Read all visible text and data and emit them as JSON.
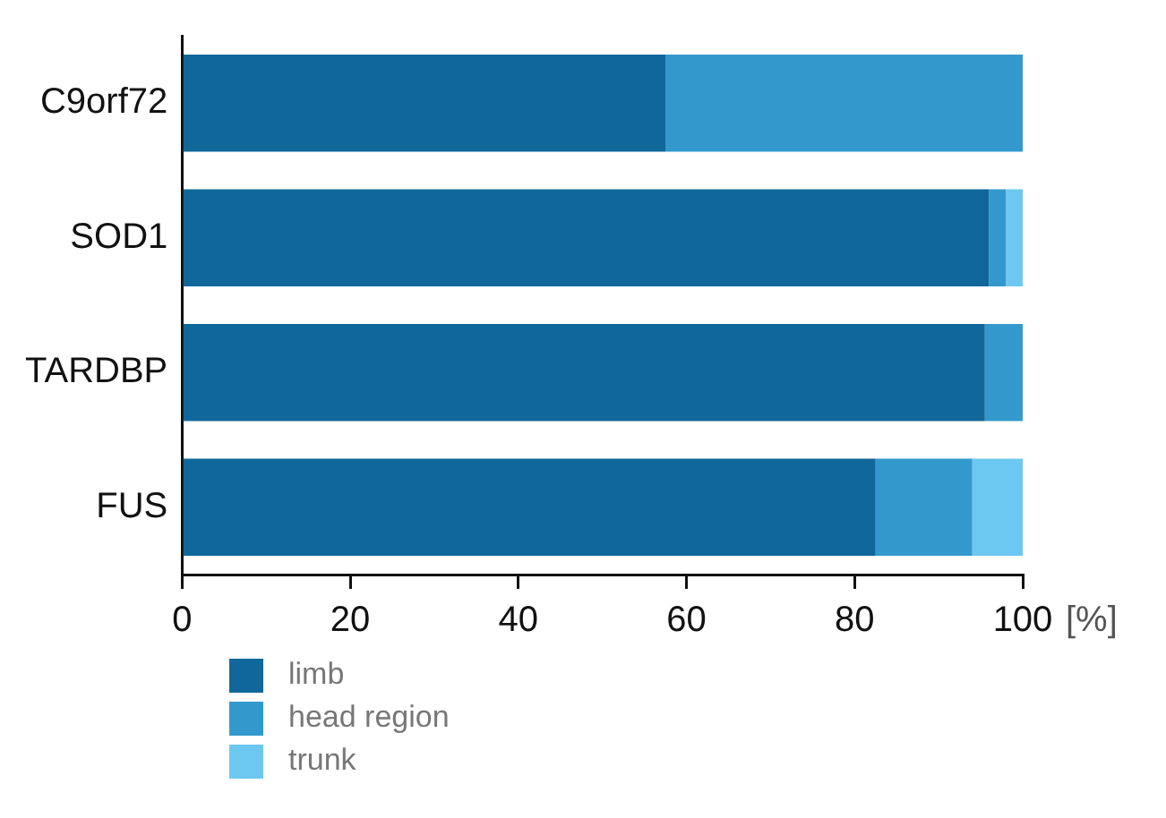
{
  "chart_data": {
    "type": "bar",
    "orientation": "horizontal",
    "stacked": true,
    "xlabel": "[%]",
    "categories": [
      "C9orf72",
      "SOD1",
      "TARDBP",
      "FUS"
    ],
    "series": [
      {
        "name": "limb",
        "color": "#10689a",
        "values": [
          57.5,
          96,
          95.5,
          82.5
        ]
      },
      {
        "name": "head region",
        "color": "#3399cc",
        "values": [
          42.5,
          2,
          4.5,
          11.5
        ]
      },
      {
        "name": "trunk",
        "color": "#6cc8f0",
        "values": [
          0,
          2,
          0,
          6
        ]
      }
    ],
    "xlim": [
      0,
      100
    ],
    "xticks": [
      0,
      20,
      40,
      60,
      80,
      100
    ],
    "grid": false,
    "legend": "bottom left"
  }
}
